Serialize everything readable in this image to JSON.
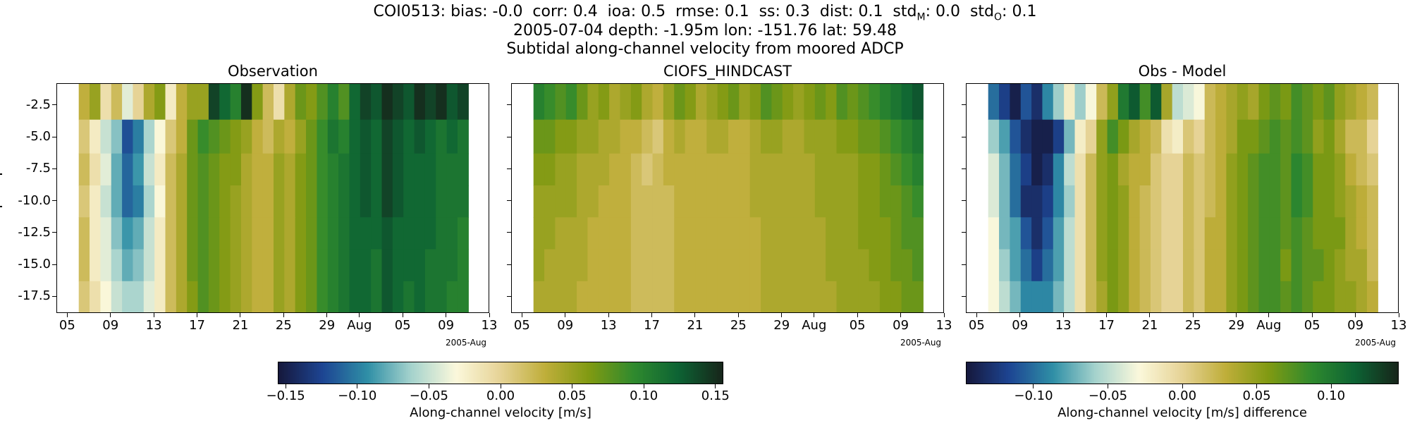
{
  "header": {
    "line1_prefix": "COI0513: bias: -0.0  corr: 0.4  ioa: 0.5  rmse: 0.1  ss: 0.3  dist: 0.1  std",
    "line1_subM": "M",
    "line1_mid": ": 0.0  std",
    "line1_subO": "O",
    "line1_suffix": ": 0.1",
    "line2": "2005-07-04 depth: -1.95m lon: -151.76 lat: 59.48",
    "line3": "Subtidal along-channel velocity from moored ADCP"
  },
  "colors": {
    "cmap": [
      "#16183c",
      "#1d4593",
      "#2f8fa6",
      "#a6d3cd",
      "#fbf8db",
      "#e6d396",
      "#bfae3a",
      "#809a12",
      "#2f8a2e",
      "#0d6334",
      "#17251a"
    ]
  },
  "chart_data": [
    {
      "type": "heatmap",
      "title": "Observation",
      "x_ticks": [
        "05",
        "09",
        "13",
        "17",
        "21",
        "25",
        "29",
        "Aug",
        "05",
        "09",
        "13"
      ],
      "x_offset_label": "2005-Aug",
      "y_ticks": [
        "-2.5",
        "-5.0",
        "-7.5",
        "-10.0",
        "-12.5",
        "-15.0",
        "-17.5"
      ],
      "ylim": [
        -18.8,
        -0.8
      ],
      "depth_bins": [
        -2.2,
        -5.0,
        -7.5,
        -10.0,
        -12.5,
        -15.0,
        -17.5
      ],
      "time_range": [
        "2005-07-06",
        "2005-08-11"
      ],
      "colorbar": {
        "label": "Along-channel velocity [m/s]",
        "range": [
          -0.155,
          0.155
        ],
        "ticks": [
          "-0.15",
          "-0.10",
          "-0.05",
          "0.00",
          "0.05",
          "0.10",
          "0.15"
        ]
      },
      "daily_values_by_bin": [
        [
          0.03,
          0.05,
          -0.01,
          0.02,
          -0.04,
          0.0,
          0.04,
          0.06,
          -0.02,
          0.03,
          0.05,
          0.05,
          0.14,
          0.12,
          0.1,
          0.15,
          0.06,
          0.02,
          -0.01,
          0.04,
          0.07,
          0.06,
          0.08,
          0.1,
          0.08,
          0.12,
          0.14,
          0.13,
          0.15,
          0.14,
          0.13,
          0.15,
          0.14,
          0.15,
          0.13,
          0.14
        ],
        [
          0.01,
          -0.02,
          -0.05,
          -0.07,
          -0.12,
          -0.1,
          -0.06,
          -0.03,
          0.01,
          0.03,
          0.07,
          0.09,
          0.08,
          0.07,
          0.06,
          0.05,
          0.03,
          0.02,
          0.04,
          0.03,
          0.05,
          0.07,
          0.09,
          0.11,
          0.1,
          0.12,
          0.13,
          0.12,
          0.14,
          0.13,
          0.12,
          0.13,
          0.12,
          0.11,
          0.12,
          0.11
        ],
        [
          0.02,
          -0.01,
          -0.04,
          -0.08,
          -0.11,
          -0.09,
          -0.05,
          -0.02,
          0.02,
          0.04,
          0.07,
          0.08,
          0.07,
          0.06,
          0.06,
          0.04,
          0.03,
          0.03,
          0.05,
          0.04,
          0.06,
          0.07,
          0.09,
          0.1,
          0.11,
          0.12,
          0.13,
          0.12,
          0.14,
          0.13,
          0.12,
          0.12,
          0.12,
          0.11,
          0.11,
          0.11
        ],
        [
          0.01,
          -0.02,
          -0.05,
          -0.08,
          -0.11,
          -0.1,
          -0.06,
          -0.03,
          0.02,
          0.04,
          0.07,
          0.08,
          0.07,
          0.06,
          0.05,
          0.04,
          0.03,
          0.03,
          0.05,
          0.04,
          0.06,
          0.07,
          0.09,
          0.1,
          0.11,
          0.12,
          0.13,
          0.12,
          0.14,
          0.13,
          0.12,
          0.12,
          0.12,
          0.11,
          0.11,
          0.11
        ],
        [
          0.02,
          -0.02,
          -0.04,
          -0.07,
          -0.09,
          -0.08,
          -0.05,
          -0.02,
          0.02,
          0.04,
          0.07,
          0.08,
          0.07,
          0.06,
          0.05,
          0.04,
          0.03,
          0.03,
          0.05,
          0.04,
          0.06,
          0.07,
          0.09,
          0.1,
          0.11,
          0.12,
          0.12,
          0.12,
          0.13,
          0.12,
          0.12,
          0.12,
          0.12,
          0.11,
          0.11,
          0.1
        ],
        [
          0.02,
          -0.02,
          -0.04,
          -0.06,
          -0.08,
          -0.07,
          -0.05,
          -0.02,
          0.02,
          0.04,
          0.07,
          0.08,
          0.07,
          0.06,
          0.05,
          0.04,
          0.03,
          0.03,
          0.05,
          0.04,
          0.06,
          0.07,
          0.09,
          0.1,
          0.11,
          0.12,
          0.12,
          0.11,
          0.13,
          0.12,
          0.12,
          0.12,
          0.11,
          0.11,
          0.11,
          0.1
        ],
        [
          0.01,
          -0.01,
          -0.03,
          -0.05,
          -0.06,
          -0.06,
          -0.04,
          -0.02,
          0.02,
          0.04,
          0.06,
          0.08,
          0.07,
          0.06,
          0.05,
          0.04,
          0.03,
          0.03,
          0.05,
          0.04,
          0.06,
          0.07,
          0.09,
          0.1,
          0.11,
          0.12,
          0.12,
          0.11,
          0.13,
          0.12,
          0.11,
          0.12,
          0.11,
          0.11,
          0.1,
          0.1
        ]
      ]
    },
    {
      "type": "heatmap",
      "title": "CIOFS_HINDCAST",
      "x_ticks": [
        "05",
        "09",
        "13",
        "17",
        "21",
        "25",
        "29",
        "Aug",
        "05",
        "09",
        "13"
      ],
      "x_offset_label": "2005-Aug",
      "y_ticks": [
        "-2.5",
        "-5.0",
        "-7.5",
        "-10.0",
        "-12.5",
        "-15.0",
        "-17.5"
      ],
      "ylim": [
        -18.8,
        -0.8
      ],
      "depth_bins": [
        -2.2,
        -5.0,
        -7.5,
        -10.0,
        -12.5,
        -15.0,
        -17.5
      ],
      "time_range": [
        "2005-07-06",
        "2005-08-11"
      ],
      "daily_values_by_bin": [
        [
          0.1,
          0.09,
          0.08,
          0.09,
          0.07,
          0.05,
          0.06,
          0.04,
          0.05,
          0.06,
          0.04,
          0.03,
          0.05,
          0.07,
          0.06,
          0.04,
          0.05,
          0.06,
          0.07,
          0.05,
          0.06,
          0.08,
          0.07,
          0.06,
          0.05,
          0.06,
          0.07,
          0.06,
          0.08,
          0.07,
          0.08,
          0.09,
          0.1,
          0.11,
          0.12,
          0.13
        ],
        [
          0.07,
          0.07,
          0.06,
          0.06,
          0.05,
          0.05,
          0.04,
          0.04,
          0.03,
          0.03,
          0.02,
          0.01,
          0.03,
          0.04,
          0.03,
          0.03,
          0.04,
          0.04,
          0.03,
          0.03,
          0.04,
          0.05,
          0.05,
          0.04,
          0.04,
          0.05,
          0.05,
          0.05,
          0.06,
          0.06,
          0.07,
          0.07,
          0.08,
          0.09,
          0.1,
          0.11
        ],
        [
          0.06,
          0.06,
          0.05,
          0.05,
          0.04,
          0.04,
          0.04,
          0.03,
          0.03,
          0.02,
          0.01,
          0.02,
          0.03,
          0.03,
          0.03,
          0.03,
          0.03,
          0.03,
          0.03,
          0.03,
          0.04,
          0.04,
          0.04,
          0.04,
          0.04,
          0.04,
          0.05,
          0.05,
          0.05,
          0.05,
          0.06,
          0.06,
          0.07,
          0.08,
          0.09,
          0.1
        ],
        [
          0.05,
          0.05,
          0.05,
          0.05,
          0.04,
          0.04,
          0.03,
          0.03,
          0.03,
          0.02,
          0.02,
          0.02,
          0.02,
          0.03,
          0.03,
          0.03,
          0.03,
          0.03,
          0.03,
          0.03,
          0.04,
          0.04,
          0.04,
          0.04,
          0.04,
          0.04,
          0.05,
          0.05,
          0.05,
          0.05,
          0.06,
          0.06,
          0.07,
          0.07,
          0.08,
          0.09
        ],
        [
          0.05,
          0.05,
          0.04,
          0.04,
          0.04,
          0.03,
          0.03,
          0.03,
          0.03,
          0.02,
          0.02,
          0.02,
          0.02,
          0.03,
          0.03,
          0.03,
          0.03,
          0.03,
          0.03,
          0.03,
          0.03,
          0.04,
          0.04,
          0.04,
          0.04,
          0.04,
          0.04,
          0.05,
          0.05,
          0.05,
          0.06,
          0.06,
          0.06,
          0.07,
          0.08,
          0.08
        ],
        [
          0.05,
          0.04,
          0.04,
          0.04,
          0.04,
          0.03,
          0.03,
          0.03,
          0.03,
          0.02,
          0.02,
          0.02,
          0.02,
          0.03,
          0.03,
          0.03,
          0.03,
          0.03,
          0.03,
          0.03,
          0.03,
          0.04,
          0.04,
          0.04,
          0.04,
          0.04,
          0.04,
          0.05,
          0.05,
          0.05,
          0.05,
          0.06,
          0.06,
          0.07,
          0.07,
          0.08
        ],
        [
          0.04,
          0.04,
          0.04,
          0.04,
          0.03,
          0.03,
          0.03,
          0.03,
          0.03,
          0.02,
          0.02,
          0.02,
          0.02,
          0.03,
          0.03,
          0.03,
          0.03,
          0.03,
          0.03,
          0.03,
          0.03,
          0.04,
          0.04,
          0.04,
          0.04,
          0.04,
          0.04,
          0.04,
          0.05,
          0.05,
          0.05,
          0.05,
          0.06,
          0.06,
          0.07,
          0.07
        ]
      ]
    },
    {
      "type": "heatmap",
      "title": "Obs - Model",
      "x_ticks": [
        "05",
        "09",
        "13",
        "17",
        "21",
        "25",
        "29",
        "Aug",
        "05",
        "09",
        "13"
      ],
      "x_offset_label": "2005-Aug",
      "y_ticks": [
        "-2.5",
        "-5.0",
        "-7.5",
        "-10.0",
        "-12.5",
        "-15.0",
        "-17.5"
      ],
      "ylim": [
        -18.8,
        -0.8
      ],
      "depth_bins": [
        -2.2,
        -5.0,
        -7.5,
        -10.0,
        -12.5,
        -15.0,
        -17.5
      ],
      "time_range": [
        "2005-07-06",
        "2005-08-11"
      ],
      "colorbar": {
        "label": "Along-channel velocity [m/s] difference",
        "range": [
          -0.145,
          0.145
        ],
        "ticks": [
          "-0.10",
          "-0.05",
          "0.00",
          "0.05",
          "0.10"
        ]
      },
      "daily_values_by_bin": [
        [
          -0.1,
          -0.12,
          -0.14,
          -0.11,
          -0.13,
          -0.09,
          -0.06,
          -0.02,
          -0.06,
          -0.03,
          0.02,
          0.05,
          0.1,
          0.12,
          0.08,
          0.12,
          0.04,
          -0.05,
          -0.04,
          -0.03,
          0.02,
          0.03,
          0.04,
          0.05,
          0.04,
          0.06,
          0.07,
          0.06,
          0.08,
          0.07,
          0.06,
          0.07,
          0.05,
          0.04,
          0.03,
          0.02
        ],
        [
          -0.06,
          -0.08,
          -0.11,
          -0.13,
          -0.14,
          -0.14,
          -0.12,
          -0.07,
          -0.02,
          0.0,
          0.05,
          0.08,
          0.06,
          0.04,
          0.03,
          0.02,
          -0.01,
          -0.02,
          0.01,
          0.0,
          0.02,
          0.03,
          0.04,
          0.06,
          0.06,
          0.07,
          0.08,
          0.07,
          0.08,
          0.07,
          0.05,
          0.06,
          0.04,
          0.02,
          0.02,
          0.0
        ],
        [
          -0.04,
          -0.07,
          -0.1,
          -0.12,
          -0.14,
          -0.13,
          -0.09,
          -0.05,
          -0.01,
          0.02,
          0.05,
          0.06,
          0.04,
          0.03,
          0.03,
          0.01,
          0.0,
          0.0,
          0.02,
          0.01,
          0.02,
          0.03,
          0.05,
          0.06,
          0.07,
          0.08,
          0.08,
          0.07,
          0.09,
          0.08,
          0.06,
          0.06,
          0.05,
          0.03,
          0.02,
          0.01
        ],
        [
          -0.04,
          -0.07,
          -0.1,
          -0.13,
          -0.13,
          -0.12,
          -0.09,
          -0.06,
          -0.01,
          0.02,
          0.05,
          0.06,
          0.05,
          0.03,
          0.02,
          0.01,
          0.0,
          0.0,
          0.02,
          0.01,
          0.02,
          0.03,
          0.05,
          0.06,
          0.07,
          0.08,
          0.08,
          0.07,
          0.09,
          0.08,
          0.06,
          0.06,
          0.05,
          0.04,
          0.03,
          0.02
        ],
        [
          -0.03,
          -0.07,
          -0.08,
          -0.11,
          -0.13,
          -0.11,
          -0.08,
          -0.05,
          -0.01,
          0.02,
          0.05,
          0.06,
          0.05,
          0.03,
          0.02,
          0.01,
          0.0,
          0.0,
          0.02,
          0.01,
          0.03,
          0.03,
          0.05,
          0.06,
          0.07,
          0.08,
          0.08,
          0.07,
          0.08,
          0.07,
          0.06,
          0.06,
          0.06,
          0.04,
          0.03,
          0.02
        ],
        [
          -0.03,
          -0.06,
          -0.08,
          -0.1,
          -0.12,
          -0.1,
          -0.08,
          -0.05,
          -0.01,
          0.02,
          0.05,
          0.06,
          0.05,
          0.03,
          0.02,
          0.01,
          0.0,
          0.0,
          0.02,
          0.01,
          0.03,
          0.03,
          0.05,
          0.06,
          0.07,
          0.08,
          0.08,
          0.06,
          0.08,
          0.07,
          0.07,
          0.06,
          0.05,
          0.04,
          0.04,
          0.02
        ],
        [
          -0.03,
          -0.05,
          -0.07,
          -0.09,
          -0.09,
          -0.09,
          -0.07,
          -0.05,
          -0.01,
          0.02,
          0.04,
          0.06,
          0.05,
          0.03,
          0.02,
          0.01,
          0.0,
          0.0,
          0.02,
          0.01,
          0.03,
          0.03,
          0.05,
          0.06,
          0.07,
          0.08,
          0.08,
          0.07,
          0.08,
          0.07,
          0.06,
          0.06,
          0.05,
          0.05,
          0.04,
          0.03
        ]
      ]
    }
  ]
}
